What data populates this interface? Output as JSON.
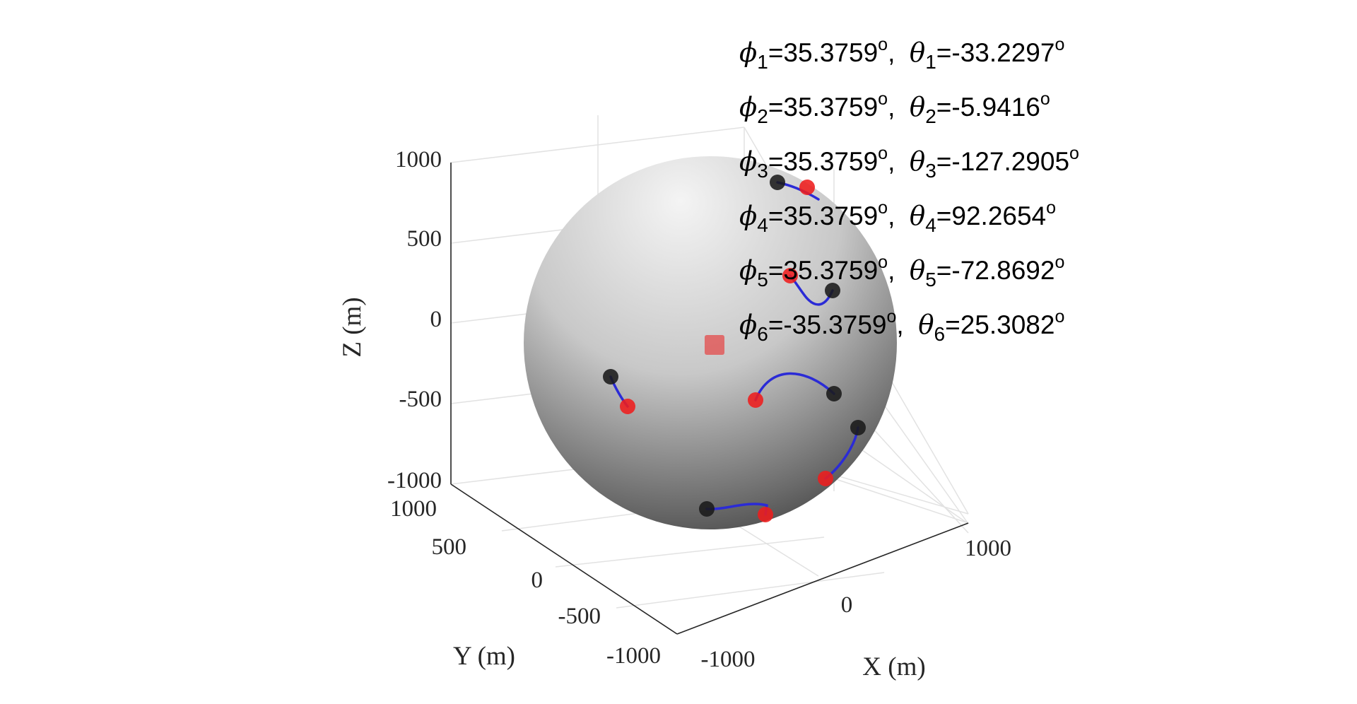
{
  "chart_data": {
    "type": "scatter3d",
    "xlabel": "X (m)",
    "ylabel": "Y (m)",
    "zlabel": "Z (m)",
    "xlim": [
      -1000,
      1000
    ],
    "ylim": [
      -1000,
      1000
    ],
    "zlim": [
      -1000,
      1000
    ],
    "grid": true,
    "x_ticks": [
      "-1000",
      "0",
      "1000"
    ],
    "y_ticks": [
      "-1000",
      "-500",
      "0",
      "500",
      "1000"
    ],
    "z_ticks": [
      "-1000",
      "-500",
      "0",
      "500",
      "1000"
    ],
    "sphere": {
      "radius": 1000,
      "center": [
        0,
        0,
        0
      ],
      "color": "#9a9a9a"
    },
    "center_marker": {
      "shape": "square",
      "color": "#e06060"
    },
    "marker_colors": {
      "start": "#1a1a1a",
      "end": "#ee1c1c",
      "path": "#2b2bd6"
    },
    "annotations": [
      {
        "i": "1",
        "phi": "=35.3759",
        "theta": "=-33.2297"
      },
      {
        "i": "2",
        "phi": "=35.3759",
        "theta": "=-5.9416"
      },
      {
        "i": "3",
        "phi": "=35.3759",
        "theta": "=-127.2905"
      },
      {
        "i": "4",
        "phi": "=35.3759",
        "theta": "=92.2654"
      },
      {
        "i": "5",
        "phi": "=35.3759",
        "theta": "=-72.8692"
      },
      {
        "i": "6",
        "phi": "=-35.3759",
        "theta": "=25.3082"
      }
    ],
    "degree_symbol": "o",
    "phi_symbol": "ϕ",
    "theta_symbol": "θ"
  }
}
